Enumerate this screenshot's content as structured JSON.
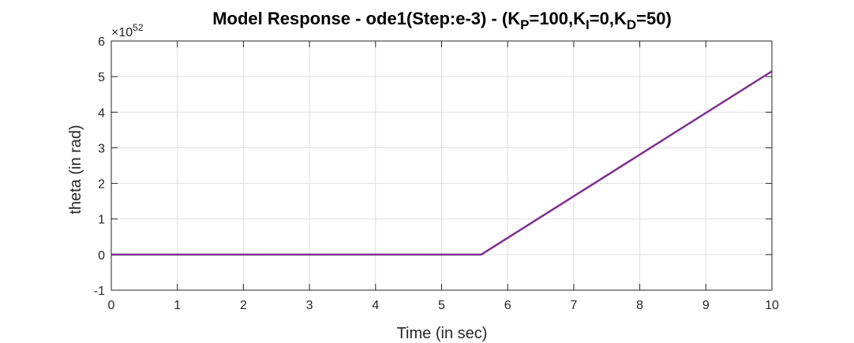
{
  "chart_data": {
    "type": "line",
    "title": {
      "prefix": "Model Response - ode1(Step:e-3) - (K",
      "sub_p": "P",
      "mid1": "=100,K",
      "sub_i": "I",
      "mid2": "=0,K",
      "sub_d": "D",
      "suffix": "=50)"
    },
    "xlabel": "Time (in sec)",
    "ylabel": "theta (in rad)",
    "y_multiplier": {
      "base": "×10",
      "exponent": "52"
    },
    "xlim": [
      0,
      10
    ],
    "ylim": [
      -1,
      6
    ],
    "xticks": [
      "0",
      "1",
      "2",
      "3",
      "4",
      "5",
      "6",
      "7",
      "8",
      "9",
      "10"
    ],
    "yticks": [
      "-1",
      "0",
      "1",
      "2",
      "3",
      "4",
      "5",
      "6"
    ],
    "grid": true,
    "series": [
      {
        "color": "#7E2F8E",
        "x": [
          0,
          5.6,
          10
        ],
        "y": [
          0,
          0,
          5.15
        ]
      }
    ]
  }
}
